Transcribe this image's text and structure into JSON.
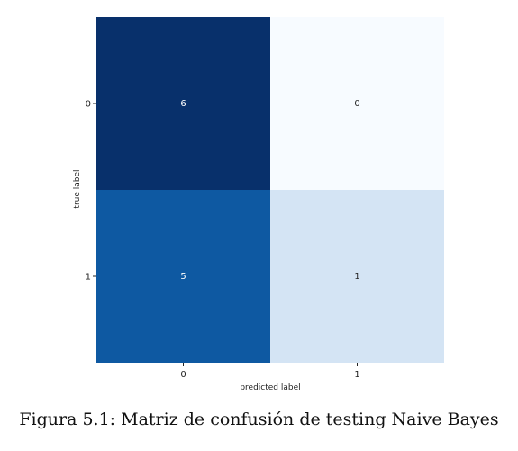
{
  "caption": "Figura 5.1: Matriz de confusión de testing Naive Bayes",
  "chart_data": {
    "type": "heatmap",
    "xlabel": "predicted label",
    "ylabel": "true label",
    "x_categories": [
      "0",
      "1"
    ],
    "y_categories": [
      "0",
      "1"
    ],
    "values": [
      [
        6,
        0
      ],
      [
        5,
        1
      ]
    ],
    "colormap": "Blues",
    "vmin": 0,
    "vmax": 6,
    "colorbar": false,
    "grid": false
  },
  "colors": {
    "cell_0_0": "#08306b",
    "cell_0_1": "#f7fbff",
    "cell_1_0": "#0e59a2",
    "cell_1_1": "#d4e4f4",
    "text_on_dark": "#ffffff",
    "text_on_light": "#262626"
  }
}
